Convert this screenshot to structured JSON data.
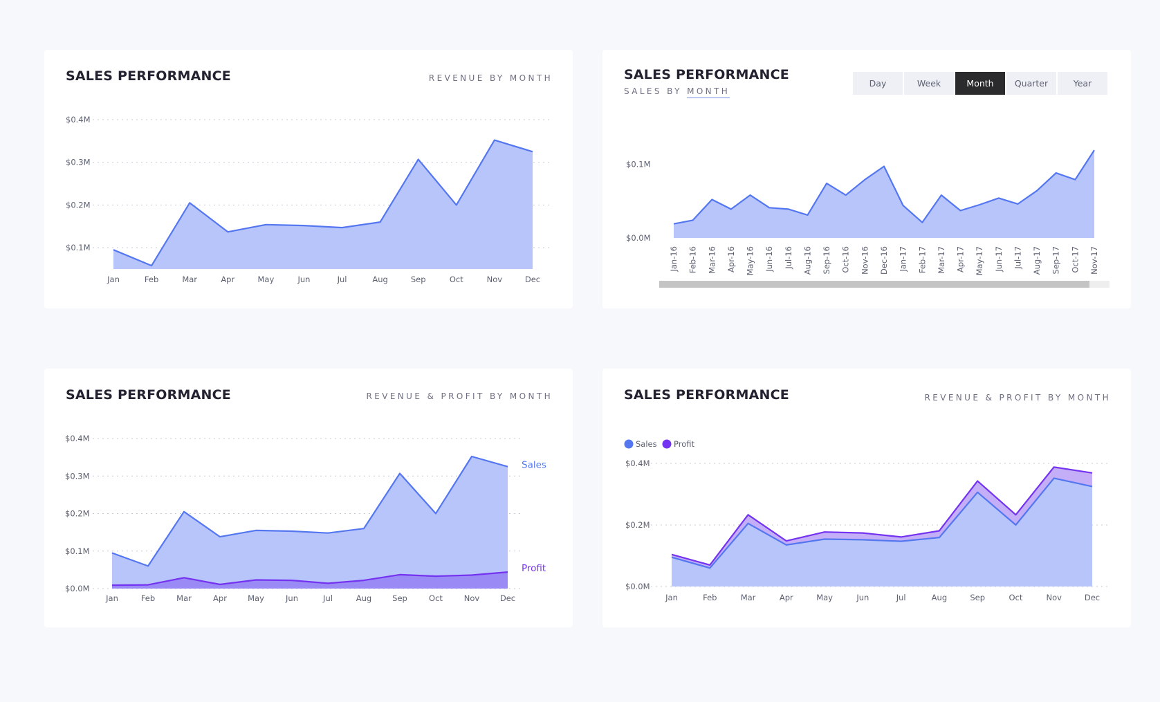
{
  "colors": {
    "sales_line": "#5477f0",
    "sales_fill": "#b8c5fb",
    "profit_line": "#7433f0",
    "profit_fill": "#9a8af5",
    "profit_band": "#c4aef8",
    "grid": "#c5c8d2",
    "active_button": "#2b2b2e"
  },
  "cards": [
    {
      "title": "SALES PERFORMANCE",
      "subtitle": "REVENUE BY MONTH"
    },
    {
      "title": "SALES PERFORMANCE",
      "subtitle_prefix": "SALES BY",
      "subtitle_underlined": "MONTH",
      "range_buttons": [
        "Day",
        "Week",
        "Month",
        "Quarter",
        "Year"
      ],
      "selected_range": "Month"
    },
    {
      "title": "SALES PERFORMANCE",
      "subtitle": "REVENUE & PROFIT BY MONTH"
    },
    {
      "title": "SALES PERFORMANCE",
      "subtitle": "REVENUE & PROFIT BY MONTH"
    }
  ],
  "chart_data": [
    {
      "type": "area",
      "categories": [
        "Jan",
        "Feb",
        "Mar",
        "Apr",
        "May",
        "Jun",
        "Jul",
        "Aug",
        "Sep",
        "Oct",
        "Nov",
        "Dec"
      ],
      "series": [
        {
          "name": "",
          "values": [
            0.095,
            0.058,
            0.205,
            0.137,
            0.154,
            0.152,
            0.147,
            0.16,
            0.307,
            0.2,
            0.352,
            0.325
          ]
        }
      ],
      "ylim": [
        0.05,
        0.4
      ],
      "yticks": [
        0.1,
        0.2,
        0.3,
        0.4
      ],
      "yticklabels": [
        "$0.1M",
        "$0.2M",
        "$0.3M",
        "$0.4M"
      ],
      "grid": true,
      "legend": false
    },
    {
      "type": "area",
      "categories": [
        "Jan-16",
        "Feb-16",
        "Mar-16",
        "Apr-16",
        "May-16",
        "Jun-16",
        "Jul-16",
        "Aug-16",
        "Sep-16",
        "Oct-16",
        "Nov-16",
        "Dec-16",
        "Jan-17",
        "Feb-17",
        "Mar-17",
        "Apr-17",
        "May-17",
        "Jun-17",
        "Jul-17",
        "Aug-17",
        "Sep-17",
        "Oct-17",
        "Nov-17"
      ],
      "series": [
        {
          "name": "",
          "values": [
            0.019,
            0.024,
            0.052,
            0.039,
            0.058,
            0.041,
            0.039,
            0.031,
            0.074,
            0.058,
            0.079,
            0.097,
            0.044,
            0.021,
            0.058,
            0.037,
            0.045,
            0.054,
            0.046,
            0.064,
            0.088,
            0.079,
            0.119
          ]
        }
      ],
      "ylim": [
        0,
        0.12
      ],
      "yticks": [
        0,
        0.1
      ],
      "yticklabels": [
        "$0.0M",
        "$0.1M"
      ],
      "grid": false,
      "legend": false,
      "scrollbar": true
    },
    {
      "type": "area",
      "categories": [
        "Jan",
        "Feb",
        "Mar",
        "Apr",
        "May",
        "Jun",
        "Jul",
        "Aug",
        "Sep",
        "Oct",
        "Nov",
        "Dec"
      ],
      "series": [
        {
          "name": "Sales",
          "values": [
            0.095,
            0.06,
            0.205,
            0.138,
            0.155,
            0.153,
            0.148,
            0.16,
            0.307,
            0.2,
            0.352,
            0.325
          ]
        },
        {
          "name": "Profit",
          "values": [
            0.009,
            0.01,
            0.029,
            0.011,
            0.023,
            0.022,
            0.014,
            0.022,
            0.037,
            0.033,
            0.036,
            0.044
          ]
        }
      ],
      "ylim": [
        0,
        0.4
      ],
      "yticks": [
        0,
        0.1,
        0.2,
        0.3,
        0.4
      ],
      "yticklabels": [
        "$0.0M",
        "$0.1M",
        "$0.2M",
        "$0.3M",
        "$0.4M"
      ],
      "grid": true,
      "legend": "direct labels at right"
    },
    {
      "type": "area",
      "categories": [
        "Jan",
        "Feb",
        "Mar",
        "Apr",
        "May",
        "Jun",
        "Jul",
        "Aug",
        "Sep",
        "Oct",
        "Nov",
        "Dec"
      ],
      "series": [
        {
          "name": "Sales",
          "values": [
            0.095,
            0.06,
            0.205,
            0.135,
            0.154,
            0.152,
            0.147,
            0.159,
            0.306,
            0.2,
            0.352,
            0.325
          ]
        },
        {
          "name": "Profit",
          "values": [
            0.104,
            0.07,
            0.233,
            0.148,
            0.177,
            0.174,
            0.161,
            0.181,
            0.343,
            0.233,
            0.388,
            0.369
          ]
        }
      ],
      "ylim": [
        0,
        0.4
      ],
      "yticks": [
        0,
        0.2,
        0.4
      ],
      "yticklabels": [
        "$0.0M",
        "$0.2M",
        "$0.4M"
      ],
      "grid": true,
      "legend": "top-left"
    }
  ]
}
